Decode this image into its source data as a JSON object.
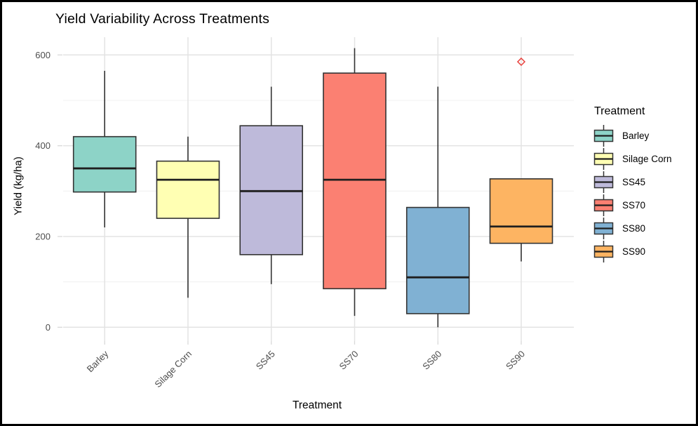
{
  "title": "Yield Variability Across Treatments",
  "x_axis": {
    "title": "Treatment"
  },
  "y_axis": {
    "title": "Yield (kg/ha)"
  },
  "legend": {
    "title": "Treatment",
    "position": "right"
  },
  "colors": {
    "background": "#ffffff",
    "frame_border": "#000000",
    "grid_major": "#e3e3e3",
    "grid_minor": "#f0f0f0",
    "axis_tick": "#d9d9d9",
    "tick_label": "#4d4d4d",
    "box_stroke": "#333333",
    "median_stroke": "#1f1f1f",
    "outlier": "#e8413c"
  },
  "chart_data": {
    "type": "boxplot",
    "title": "Yield Variability Across Treatments",
    "xlabel": "Treatment",
    "ylabel": "Yield (kg/ha)",
    "ylim": [
      0,
      620
    ],
    "yticks": [
      0,
      200,
      400,
      600
    ],
    "yticks_minor": [
      100,
      300,
      500
    ],
    "grid": "major+minor horizontal, major vertical per category",
    "legend_position": "right",
    "categories": [
      "Barley",
      "Silage Corn",
      "SS45",
      "SS70",
      "SS80",
      "SS90"
    ],
    "series": [
      {
        "name": "Barley",
        "color": "#8DD3C7",
        "min": 220,
        "q1": 298,
        "median": 350,
        "q3": 420,
        "max": 565,
        "outliers": []
      },
      {
        "name": "Silage Corn",
        "color": "#FFFFB3",
        "min": 65,
        "q1": 240,
        "median": 325,
        "q3": 366,
        "max": 420,
        "outliers": []
      },
      {
        "name": "SS45",
        "color": "#BEBADA",
        "min": 95,
        "q1": 160,
        "median": 300,
        "q3": 444,
        "max": 530,
        "outliers": []
      },
      {
        "name": "SS70",
        "color": "#FB8072",
        "min": 25,
        "q1": 85,
        "median": 325,
        "q3": 560,
        "max": 615,
        "outliers": []
      },
      {
        "name": "SS80",
        "color": "#80B1D3",
        "min": 0,
        "q1": 30,
        "median": 110,
        "q3": 264,
        "max": 530,
        "outliers": []
      },
      {
        "name": "SS90",
        "color": "#FDB462",
        "min": 145,
        "q1": 185,
        "median": 222,
        "q3": 327,
        "max": 327,
        "outliers": [
          585
        ]
      }
    ],
    "outlier_style": {
      "shape": "open-diamond",
      "color": "#e8413c"
    }
  }
}
